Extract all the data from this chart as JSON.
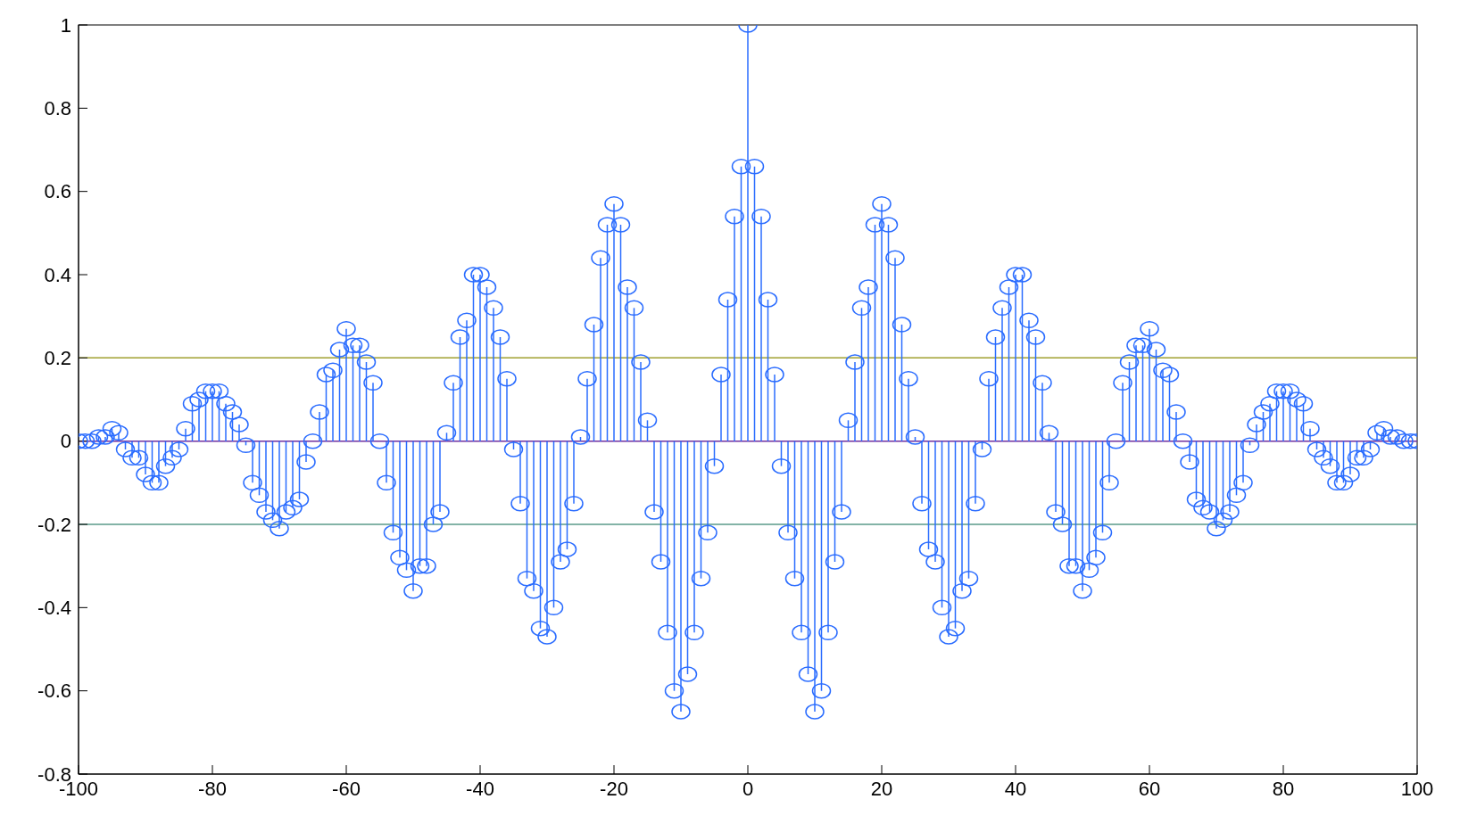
{
  "chart_data": {
    "type": "lollipop",
    "color": "#2a6cff",
    "marker": "circle",
    "xlim": [
      -100,
      100
    ],
    "xticks": [
      -100,
      -80,
      -60,
      -40,
      -20,
      0,
      20,
      40,
      60,
      80,
      100
    ],
    "ylim": [
      -0.8,
      1
    ],
    "yticks": [
      -0.8,
      -0.6,
      -0.4,
      -0.2,
      0,
      0.2,
      0.4,
      0.6,
      0.8,
      1
    ],
    "ref_lines": [
      {
        "axis": "y",
        "value": 0.2,
        "color": "#a0a030"
      },
      {
        "axis": "y",
        "value": 0,
        "color": "#7030a0"
      },
      {
        "axis": "y",
        "value": -0.2,
        "color": "#5a9a8a"
      }
    ],
    "x": [
      -100,
      -99,
      -98,
      -97,
      -96,
      -95,
      -94,
      -93,
      -92,
      -91,
      -90,
      -89,
      -88,
      -87,
      -86,
      -85,
      -84,
      -83,
      -82,
      -81,
      -80,
      -79,
      -78,
      -77,
      -76,
      -75,
      -74,
      -73,
      -72,
      -71,
      -70,
      -69,
      -68,
      -67,
      -66,
      -65,
      -64,
      -63,
      -62,
      -61,
      -60,
      -59,
      -58,
      -57,
      -56,
      -55,
      -54,
      -53,
      -52,
      -51,
      -50,
      -49,
      -48,
      -47,
      -46,
      -45,
      -44,
      -43,
      -42,
      -41,
      -40,
      -39,
      -38,
      -37,
      -36,
      -35,
      -34,
      -33,
      -32,
      -31,
      -30,
      -29,
      -28,
      -27,
      -26,
      -25,
      -24,
      -23,
      -22,
      -21,
      -20,
      -19,
      -18,
      -17,
      -16,
      -15,
      -14,
      -13,
      -12,
      -11,
      -10,
      -9,
      -8,
      -7,
      -6,
      -5,
      -4,
      -3,
      -2,
      -1,
      0,
      1,
      2,
      3,
      4,
      5,
      6,
      7,
      8,
      9,
      10,
      11,
      12,
      13,
      14,
      15,
      16,
      17,
      18,
      19,
      20,
      21,
      22,
      23,
      24,
      25,
      26,
      27,
      28,
      29,
      30,
      31,
      32,
      33,
      34,
      35,
      36,
      37,
      38,
      39,
      40,
      41,
      42,
      43,
      44,
      45,
      46,
      47,
      48,
      49,
      50,
      51,
      52,
      53,
      54,
      55,
      56,
      57,
      58,
      59,
      60,
      61,
      62,
      63,
      64,
      65,
      66,
      67,
      68,
      69,
      70,
      71,
      72,
      73,
      74,
      75,
      76,
      77,
      78,
      79,
      80,
      81,
      82,
      83,
      84,
      85,
      86,
      87,
      88,
      89,
      90,
      91,
      92,
      93,
      94,
      95,
      96,
      97,
      98,
      99,
      100
    ],
    "values": [
      0,
      0,
      0,
      0.01,
      0.01,
      0.03,
      0.02,
      -0.02,
      -0.04,
      -0.04,
      -0.08,
      -0.1,
      -0.1,
      -0.06,
      -0.04,
      -0.02,
      0.03,
      0.09,
      0.1,
      0.12,
      0.12,
      0.12,
      0.09,
      0.07,
      0.04,
      -0.01,
      -0.1,
      -0.13,
      -0.17,
      -0.19,
      -0.21,
      -0.17,
      -0.16,
      -0.14,
      -0.05,
      0,
      0.07,
      0.16,
      0.17,
      0.22,
      0.27,
      0.23,
      0.23,
      0.19,
      0.14,
      0,
      -0.1,
      -0.22,
      -0.28,
      -0.31,
      -0.36,
      -0.3,
      -0.3,
      -0.2,
      -0.17,
      0.02,
      0.14,
      0.25,
      0.29,
      0.4,
      0.4,
      0.37,
      0.32,
      0.25,
      0.15,
      -0.02,
      -0.15,
      -0.33,
      -0.36,
      -0.45,
      -0.47,
      -0.4,
      -0.29,
      -0.26,
      -0.15,
      0.01,
      0.15,
      0.28,
      0.44,
      0.52,
      0.57,
      0.52,
      0.37,
      0.32,
      0.19,
      0.05,
      -0.17,
      -0.29,
      -0.46,
      -0.6,
      -0.65,
      -0.56,
      -0.46,
      -0.33,
      -0.22,
      -0.06,
      0.16,
      0.34,
      0.54,
      0.66,
      1,
      0.66,
      0.54,
      0.34,
      0.16,
      -0.06,
      -0.22,
      -0.33,
      -0.46,
      -0.56,
      -0.65,
      -0.6,
      -0.46,
      -0.29,
      -0.17,
      0.05,
      0.19,
      0.32,
      0.37,
      0.52,
      0.57,
      0.52,
      0.44,
      0.28,
      0.15,
      0.01,
      -0.15,
      -0.26,
      -0.29,
      -0.4,
      -0.47,
      -0.45,
      -0.36,
      -0.33,
      -0.15,
      -0.02,
      0.15,
      0.25,
      0.32,
      0.37,
      0.4,
      0.4,
      0.29,
      0.25,
      0.14,
      0.02,
      -0.17,
      -0.2,
      -0.3,
      -0.3,
      -0.36,
      -0.31,
      -0.28,
      -0.22,
      -0.1,
      0,
      0.14,
      0.19,
      0.23,
      0.23,
      0.27,
      0.22,
      0.17,
      0.16,
      0.07,
      0,
      -0.05,
      -0.14,
      -0.16,
      -0.17,
      -0.21,
      -0.19,
      -0.17,
      -0.13,
      -0.1,
      -0.01,
      0.04,
      0.07,
      0.09,
      0.12,
      0.12,
      0.12,
      0.1,
      0.09,
      0.03,
      -0.02,
      -0.04,
      -0.06,
      -0.1,
      -0.1,
      -0.08,
      -0.04,
      -0.04,
      -0.02,
      0.02,
      0.03,
      0.01,
      0.01,
      0,
      0,
      0
    ]
  }
}
